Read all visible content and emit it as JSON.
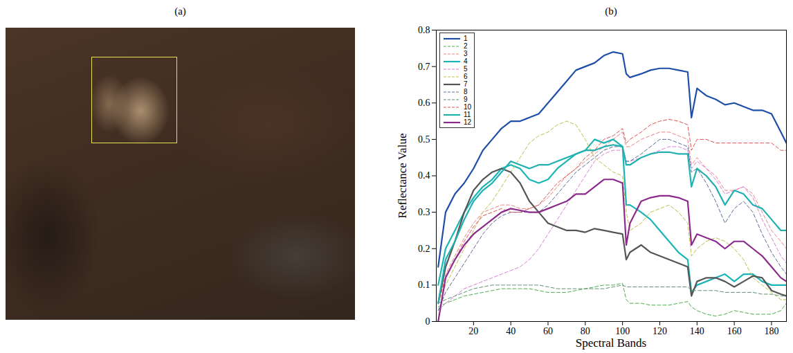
{
  "image_panel": {
    "title": "(a)"
  },
  "chart_data": {
    "type": "line",
    "title": "(b)",
    "x_label": "Spectral Bands",
    "y_label": "Reflectance Value",
    "xlim": [
      0,
      188
    ],
    "xticks": [
      20,
      40,
      60,
      80,
      100,
      120,
      140,
      160,
      180
    ],
    "ylim": [
      0,
      0.8
    ],
    "yticks": [
      0,
      0.1,
      0.2,
      0.3,
      0.4,
      0.5,
      0.6,
      0.7,
      0.8
    ],
    "grid": false,
    "legend": "top-left",
    "x": [
      1,
      5,
      10,
      15,
      20,
      25,
      30,
      35,
      40,
      45,
      50,
      55,
      60,
      65,
      70,
      75,
      80,
      85,
      90,
      95,
      100,
      102,
      104,
      110,
      115,
      120,
      125,
      130,
      135,
      137,
      140,
      145,
      150,
      155,
      160,
      165,
      170,
      175,
      180,
      185,
      188
    ],
    "series": [
      {
        "name": "1",
        "color": "#1f4ea8",
        "line_style": "solid",
        "values": [
          0.15,
          0.3,
          0.35,
          0.38,
          0.42,
          0.47,
          0.5,
          0.53,
          0.55,
          0.55,
          0.56,
          0.57,
          0.6,
          0.63,
          0.66,
          0.69,
          0.7,
          0.71,
          0.73,
          0.74,
          0.735,
          0.68,
          0.67,
          0.68,
          0.69,
          0.695,
          0.695,
          0.69,
          0.685,
          0.56,
          0.64,
          0.62,
          0.61,
          0.595,
          0.6,
          0.59,
          0.58,
          0.58,
          0.57,
          0.52,
          0.49
        ]
      },
      {
        "name": "2",
        "color": "#4caf50",
        "line_style": "dashed",
        "values": [
          0.04,
          0.05,
          0.06,
          0.07,
          0.075,
          0.08,
          0.085,
          0.09,
          0.09,
          0.09,
          0.09,
          0.085,
          0.08,
          0.08,
          0.08,
          0.085,
          0.09,
          0.095,
          0.1,
          0.1,
          0.105,
          0.06,
          0.05,
          0.05,
          0.045,
          0.045,
          0.045,
          0.05,
          0.055,
          0.04,
          0.03,
          0.02,
          0.015,
          0.02,
          0.03,
          0.025,
          0.02,
          0.02,
          0.02,
          0.03,
          0.05
        ]
      },
      {
        "name": "3",
        "color": "#f08080",
        "line_style": "dashed",
        "values": [
          0.05,
          0.13,
          0.18,
          0.23,
          0.27,
          0.3,
          0.31,
          0.32,
          0.32,
          0.31,
          0.31,
          0.32,
          0.34,
          0.37,
          0.4,
          0.42,
          0.44,
          0.46,
          0.48,
          0.5,
          0.52,
          0.48,
          0.48,
          0.5,
          0.51,
          0.52,
          0.52,
          0.51,
          0.5,
          0.43,
          0.45,
          0.42,
          0.4,
          0.36,
          0.36,
          0.37,
          0.35,
          0.3,
          0.25,
          0.22,
          0.2
        ]
      },
      {
        "name": "4",
        "color": "#1cb5b5",
        "line_style": "solid",
        "values": [
          0.1,
          0.2,
          0.25,
          0.3,
          0.34,
          0.37,
          0.39,
          0.42,
          0.43,
          0.42,
          0.39,
          0.38,
          0.39,
          0.42,
          0.44,
          0.46,
          0.47,
          0.5,
          0.49,
          0.5,
          0.48,
          0.32,
          0.32,
          0.3,
          0.28,
          0.25,
          0.22,
          0.19,
          0.17,
          0.08,
          0.1,
          0.11,
          0.12,
          0.13,
          0.11,
          0.13,
          0.13,
          0.11,
          0.1,
          0.1,
          0.1
        ]
      },
      {
        "name": "5",
        "color": "#d77fd7",
        "line_style": "dashed",
        "values": [
          0.03,
          0.05,
          0.07,
          0.09,
          0.1,
          0.11,
          0.12,
          0.13,
          0.14,
          0.15,
          0.17,
          0.2,
          0.24,
          0.28,
          0.32,
          0.36,
          0.4,
          0.44,
          0.46,
          0.47,
          0.47,
          0.44,
          0.44,
          0.45,
          0.46,
          0.47,
          0.48,
          0.48,
          0.47,
          0.42,
          0.44,
          0.42,
          0.39,
          0.35,
          0.36,
          0.37,
          0.34,
          0.28,
          0.23,
          0.18,
          0.16
        ]
      },
      {
        "name": "6",
        "color": "#bdbd4a",
        "line_style": "dashed",
        "values": [
          0.05,
          0.1,
          0.15,
          0.2,
          0.25,
          0.3,
          0.33,
          0.37,
          0.41,
          0.45,
          0.49,
          0.51,
          0.52,
          0.54,
          0.55,
          0.54,
          0.5,
          0.45,
          0.43,
          0.41,
          0.4,
          0.3,
          0.25,
          0.27,
          0.3,
          0.31,
          0.32,
          0.3,
          0.27,
          0.18,
          0.2,
          0.22,
          0.23,
          0.22,
          0.2,
          0.17,
          0.12,
          0.1,
          0.08,
          0.06,
          0.06
        ]
      },
      {
        "name": "7",
        "color": "#555555",
        "line_style": "solid",
        "values": [
          0.05,
          0.15,
          0.22,
          0.3,
          0.36,
          0.39,
          0.41,
          0.42,
          0.41,
          0.38,
          0.33,
          0.3,
          0.27,
          0.26,
          0.25,
          0.25,
          0.245,
          0.255,
          0.25,
          0.245,
          0.24,
          0.17,
          0.19,
          0.21,
          0.19,
          0.18,
          0.17,
          0.16,
          0.15,
          0.07,
          0.11,
          0.12,
          0.12,
          0.11,
          0.095,
          0.11,
          0.125,
          0.12,
          0.085,
          0.075,
          0.07
        ]
      },
      {
        "name": "8",
        "color": "#5a6a9a",
        "line_style": "dashed",
        "values": [
          0.03,
          0.08,
          0.12,
          0.16,
          0.2,
          0.24,
          0.27,
          0.29,
          0.3,
          0.3,
          0.3,
          0.3,
          0.32,
          0.35,
          0.38,
          0.41,
          0.43,
          0.45,
          0.47,
          0.48,
          0.48,
          0.44,
          0.44,
          0.46,
          0.48,
          0.5,
          0.5,
          0.49,
          0.48,
          0.41,
          0.42,
          0.38,
          0.33,
          0.27,
          0.31,
          0.33,
          0.3,
          0.24,
          0.19,
          0.15,
          0.13
        ]
      },
      {
        "name": "9",
        "color": "#5f8f6f",
        "line_style": "dashed",
        "values": [
          0.05,
          0.06,
          0.07,
          0.08,
          0.09,
          0.095,
          0.1,
          0.1,
          0.1,
          0.1,
          0.1,
          0.1,
          0.095,
          0.09,
          0.09,
          0.09,
          0.09,
          0.09,
          0.09,
          0.095,
          0.1,
          0.095,
          0.095,
          0.095,
          0.095,
          0.095,
          0.095,
          0.095,
          0.095,
          0.085,
          0.085,
          0.085,
          0.085,
          0.08,
          0.08,
          0.08,
          0.08,
          0.075,
          0.075,
          0.07,
          0.07
        ]
      },
      {
        "name": "10",
        "color": "#e05050",
        "line_style": "dashed",
        "values": [
          0.05,
          0.12,
          0.17,
          0.22,
          0.26,
          0.29,
          0.3,
          0.31,
          0.3,
          0.3,
          0.31,
          0.32,
          0.35,
          0.38,
          0.4,
          0.42,
          0.45,
          0.47,
          0.5,
          0.51,
          0.53,
          0.49,
          0.5,
          0.52,
          0.54,
          0.55,
          0.555,
          0.55,
          0.54,
          0.47,
          0.5,
          0.5,
          0.49,
          0.49,
          0.49,
          0.49,
          0.49,
          0.49,
          0.49,
          0.47,
          0.47
        ]
      },
      {
        "name": "11",
        "color": "#20b0b0",
        "line_style": "solid",
        "values": [
          0.05,
          0.17,
          0.22,
          0.28,
          0.33,
          0.36,
          0.38,
          0.41,
          0.44,
          0.43,
          0.42,
          0.43,
          0.43,
          0.44,
          0.45,
          0.46,
          0.47,
          0.47,
          0.48,
          0.485,
          0.48,
          0.43,
          0.43,
          0.45,
          0.46,
          0.465,
          0.465,
          0.46,
          0.46,
          0.37,
          0.42,
          0.4,
          0.37,
          0.32,
          0.36,
          0.35,
          0.32,
          0.31,
          0.28,
          0.25,
          0.25
        ]
      },
      {
        "name": "12",
        "color": "#8b2a8b",
        "line_style": "solid",
        "values": [
          0,
          0.12,
          0.17,
          0.21,
          0.24,
          0.26,
          0.28,
          0.3,
          0.31,
          0.305,
          0.3,
          0.3,
          0.31,
          0.32,
          0.33,
          0.35,
          0.35,
          0.37,
          0.39,
          0.39,
          0.38,
          0.21,
          0.27,
          0.33,
          0.34,
          0.345,
          0.345,
          0.34,
          0.33,
          0.21,
          0.24,
          0.23,
          0.22,
          0.2,
          0.22,
          0.22,
          0.2,
          0.18,
          0.15,
          0.12,
          0.11
        ]
      }
    ]
  }
}
